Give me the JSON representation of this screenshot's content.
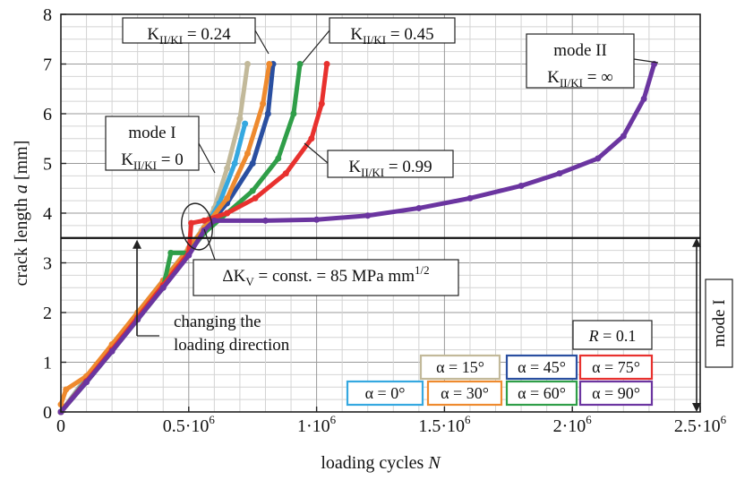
{
  "chart_data": {
    "type": "scatter",
    "xlabel": "loading cycles",
    "xlabel_var": "N",
    "ylabel": "crack length",
    "ylabel_var": "a",
    "ylabel_unit": "[mm]",
    "xlim": [
      0,
      2500000
    ],
    "ylim": [
      0,
      8
    ],
    "grid": true,
    "x_ticks": [
      {
        "value": 0,
        "label": "0",
        "exp": ""
      },
      {
        "value": 500000,
        "label": "0.5·10",
        "exp": "6"
      },
      {
        "value": 1000000,
        "label": "1·10",
        "exp": "6"
      },
      {
        "value": 1500000,
        "label": "1.5·10",
        "exp": "6"
      },
      {
        "value": 2000000,
        "label": "2·10",
        "exp": "6"
      },
      {
        "value": 2500000,
        "label": "2.5·10",
        "exp": "6"
      }
    ],
    "y_ticks": [
      {
        "value": 0,
        "label": "0"
      },
      {
        "value": 1,
        "label": "1"
      },
      {
        "value": 2,
        "label": "2"
      },
      {
        "value": 3,
        "label": "3"
      },
      {
        "value": 4,
        "label": "4"
      },
      {
        "value": 5,
        "label": "5"
      },
      {
        "value": 6,
        "label": "6"
      },
      {
        "value": 7,
        "label": "7"
      },
      {
        "value": 8,
        "label": "8"
      }
    ],
    "mode_change_level": 3.5,
    "series": [
      {
        "name": "α = 15°",
        "color": "#c2b99a",
        "points": [
          [
            0,
            0
          ],
          [
            100000,
            0.7
          ],
          [
            200000,
            1.35
          ],
          [
            300000,
            2.0
          ],
          [
            400000,
            2.65
          ],
          [
            500000,
            3.3
          ],
          [
            550000,
            3.65
          ],
          [
            600000,
            4.1
          ],
          [
            650000,
            4.9
          ],
          [
            700000,
            5.9
          ],
          [
            730000,
            7.0
          ]
        ]
      },
      {
        "name": "α = 0°",
        "color": "#35a8e0",
        "points": [
          [
            0,
            0
          ],
          [
            100000,
            0.65
          ],
          [
            200000,
            1.3
          ],
          [
            300000,
            1.95
          ],
          [
            400000,
            2.6
          ],
          [
            500000,
            3.25
          ],
          [
            550000,
            3.6
          ],
          [
            620000,
            4.2
          ],
          [
            680000,
            5.0
          ],
          [
            720000,
            5.8
          ]
        ]
      },
      {
        "name": "α = 45°",
        "color": "#2a4fa0",
        "points": [
          [
            0,
            0
          ],
          [
            100000,
            0.63
          ],
          [
            200000,
            1.27
          ],
          [
            300000,
            1.92
          ],
          [
            400000,
            2.57
          ],
          [
            500000,
            3.22
          ],
          [
            560000,
            3.65
          ],
          [
            650000,
            4.2
          ],
          [
            750000,
            5.0
          ],
          [
            810000,
            6.0
          ],
          [
            830000,
            7.0
          ]
        ]
      },
      {
        "name": "α = 30°",
        "color": "#ee8a2e",
        "points": [
          [
            0,
            0.15
          ],
          [
            20000,
            0.45
          ],
          [
            100000,
            0.72
          ],
          [
            200000,
            1.36
          ],
          [
            300000,
            2.0
          ],
          [
            400000,
            2.64
          ],
          [
            500000,
            3.28
          ],
          [
            560000,
            3.7
          ],
          [
            650000,
            4.3
          ],
          [
            730000,
            5.2
          ],
          [
            790000,
            6.2
          ],
          [
            815000,
            7.0
          ]
        ]
      },
      {
        "name": "α = 60°",
        "color": "#2f9e48",
        "points": [
          [
            0,
            0
          ],
          [
            100000,
            0.6
          ],
          [
            200000,
            1.22
          ],
          [
            300000,
            1.86
          ],
          [
            400000,
            2.5
          ],
          [
            430000,
            3.2
          ],
          [
            500000,
            3.2
          ],
          [
            560000,
            3.6
          ],
          [
            650000,
            4.0
          ],
          [
            750000,
            4.45
          ],
          [
            850000,
            5.1
          ],
          [
            910000,
            6.0
          ],
          [
            935000,
            7.0
          ]
        ]
      },
      {
        "name": "α = 75°",
        "color": "#e8312e",
        "points": [
          [
            0,
            0
          ],
          [
            100000,
            0.62
          ],
          [
            200000,
            1.25
          ],
          [
            300000,
            1.9
          ],
          [
            400000,
            2.55
          ],
          [
            500000,
            3.2
          ],
          [
            510000,
            3.8
          ],
          [
            560000,
            3.85
          ],
          [
            650000,
            4.0
          ],
          [
            760000,
            4.3
          ],
          [
            880000,
            4.8
          ],
          [
            980000,
            5.5
          ],
          [
            1020000,
            6.2
          ],
          [
            1040000,
            7.0
          ]
        ]
      },
      {
        "name": "α = 90°",
        "color": "#6b35a0",
        "points": [
          [
            0,
            0
          ],
          [
            100000,
            0.6
          ],
          [
            200000,
            1.22
          ],
          [
            300000,
            1.86
          ],
          [
            400000,
            2.5
          ],
          [
            500000,
            3.15
          ],
          [
            560000,
            3.65
          ],
          [
            600000,
            3.85
          ],
          [
            800000,
            3.85
          ],
          [
            1000000,
            3.87
          ],
          [
            1200000,
            3.95
          ],
          [
            1400000,
            4.1
          ],
          [
            1600000,
            4.3
          ],
          [
            1800000,
            4.55
          ],
          [
            1950000,
            4.8
          ],
          [
            2100000,
            5.1
          ],
          [
            2200000,
            5.55
          ],
          [
            2280000,
            6.3
          ],
          [
            2320000,
            7.0
          ]
        ]
      }
    ],
    "legend": {
      "title": "R = 0.1",
      "placement": "bottom-right",
      "items_row1": [
        {
          "label": "α = 15°",
          "color": "#c2b99a"
        },
        {
          "label": "α = 45°",
          "color": "#2a4fa0"
        },
        {
          "label": "α = 75°",
          "color": "#e8312e"
        }
      ],
      "items_row2": [
        {
          "label": "α = 0°",
          "color": "#35a8e0"
        },
        {
          "label": "α = 30°",
          "color": "#ee8a2e"
        },
        {
          "label": "α = 60°",
          "color": "#2f9e48"
        },
        {
          "label": "α = 90°",
          "color": "#6b35a0"
        }
      ]
    },
    "annotations": {
      "ratio_024": "K_II/K_I = 0.24",
      "ratio_045": "K_II/K_I = 0.45",
      "mode_ii_title": "mode II",
      "mode_ii_ratio": "K_II/K_I = ∞",
      "mode_i_title": "mode I",
      "mode_i_ratio": "K_II/K_I = 0",
      "ratio_099": "K_II/K_I = 0.99",
      "delta_k": "ΔK_V = const. = 85 MPa mm^1/2",
      "changing_line1": "changing the",
      "changing_line2": "loading direction",
      "mode_i_side": "mode I"
    }
  }
}
